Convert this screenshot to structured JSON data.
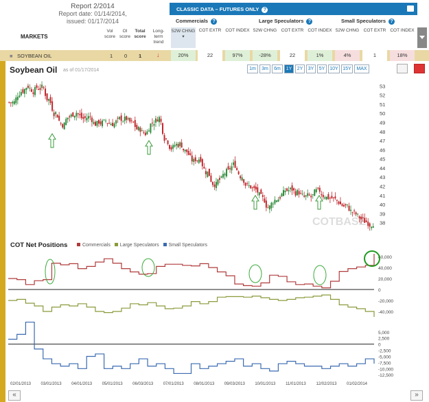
{
  "report": {
    "title": "Report 2/2014",
    "date": "Report date: 01/14/2014,",
    "issued": "issued: 01/17/2014"
  },
  "markets_label": "MARKETS",
  "columns": {
    "vol": "Vol score",
    "oi": "OI score",
    "total": "Total score",
    "lt": "Long-term trend"
  },
  "banner": {
    "label": "CLASSIC DATA – FUTURES ONLY",
    "help": "?"
  },
  "groups": [
    "Commercials",
    "Large Speculators",
    "Small Speculators"
  ],
  "subcols": [
    "52W CHNG",
    "COT EXTR",
    "COT INDEX"
  ],
  "row": {
    "market": "SOYBEAN OIL",
    "vol": "1",
    "oi": "0",
    "total": "1",
    "comm": [
      "20%",
      "22",
      "97%"
    ],
    "large": [
      "-28%",
      "22",
      "1%"
    ],
    "small": [
      "4%",
      "1",
      "18%"
    ]
  },
  "chart_title": "Soybean Oil",
  "as_of": "as of 01/17/2014",
  "ranges": [
    "1m",
    "3m",
    "6m",
    "1Y",
    "2Y",
    "3Y",
    "5Y",
    "10Y",
    "15Y",
    "MAX"
  ],
  "active_range": "1Y",
  "cot_title": "COT Net Positions",
  "legend": [
    {
      "name": "Commercials",
      "color": "#b03a3a"
    },
    {
      "name": "Large Speculators",
      "color": "#8a9a3a"
    },
    {
      "name": "Small Speculators",
      "color": "#3a6ab0"
    }
  ],
  "watermark": "COTBASE",
  "chart_data": [
    {
      "type": "candlestick",
      "title": "Soybean Oil",
      "ylim": [
        37,
        54
      ],
      "yticks": [
        "53",
        "52",
        "51",
        "50",
        "49",
        "48",
        "47",
        "46",
        "45",
        "44",
        "43",
        "42",
        "41",
        "40",
        "39",
        "38"
      ],
      "close": [
        51.2,
        52.4,
        53.0,
        52.5,
        52.8,
        51.5,
        50.0,
        48.8,
        49.6,
        50.1,
        49.4,
        49.6,
        48.8,
        49.0,
        48.9,
        49.1,
        49.3,
        48.9,
        48.2,
        47.8,
        49.0,
        49.5,
        47.2,
        46.2,
        46.6,
        45.8,
        44.7,
        45.1,
        43.5,
        42.3,
        42.7,
        43.6,
        44.4,
        43.1,
        42.0,
        41.6,
        40.6,
        39.7,
        40.6,
        41.2,
        41.6,
        41.3,
        40.8,
        40.8,
        41.4,
        41.0,
        40.7,
        40.3,
        39.8,
        39.2,
        38.6,
        38.1,
        38.0
      ]
    },
    {
      "type": "line",
      "title": "COT Net Positions",
      "series": [
        {
          "name": "Commercials",
          "values": [
            20000,
            18000,
            9000,
            16000,
            18000,
            48000,
            45000,
            47000,
            38000,
            42000,
            50000,
            56000,
            48000,
            38000,
            32000,
            28000,
            29000,
            42000,
            46000,
            46000,
            44000,
            43000,
            47000,
            40000,
            32000,
            25000,
            10000,
            7000,
            6000,
            12000,
            26000,
            24000,
            14000,
            9000,
            10000,
            6000,
            3000,
            15000,
            33000,
            38000,
            41000,
            44000,
            65000
          ]
        },
        {
          "name": "Large Speculators",
          "values": [
            -20000,
            -18000,
            -25000,
            -30000,
            -40000,
            -32000,
            -28000,
            -30000,
            -26000,
            -32000,
            -40000,
            -42000,
            -40000,
            -34000,
            -26000,
            -28000,
            -24000,
            -30000,
            -35000,
            -34000,
            -30000,
            -22000,
            -26000,
            -22000,
            -14000,
            -13000,
            -13000,
            -14000,
            -12000,
            -15000,
            -18000,
            -20000,
            -18000,
            -15000,
            -14000,
            -12000,
            -10000,
            -18000,
            -28000,
            -32000,
            -35000,
            -40000,
            -50000
          ]
        },
        {
          "name": "Small Speculators",
          "values": [
            2000,
            4000,
            9000,
            -2000,
            -6000,
            -8000,
            -9000,
            -8000,
            -10000,
            -5000,
            -4000,
            -10000,
            -9000,
            -10000,
            -8000,
            -6000,
            -9000,
            -8000,
            -10000,
            -12000,
            -12000,
            -8000,
            -10000,
            -9000,
            -8000,
            -7000,
            -6000,
            -9000,
            -8000,
            -10000,
            -11000,
            -8000,
            -7000,
            -8000,
            -9000,
            -9000,
            -10000,
            -9000,
            -8000,
            -9000,
            -8000,
            -6000,
            -8000
          ]
        }
      ],
      "yticks_upper": [
        "60,000",
        "40,000",
        "20,000",
        "0",
        "-20,000",
        "-40,000"
      ],
      "yticks_lower": [
        "5,000",
        "2,500",
        "0",
        "-2,500",
        "-5,000",
        "-7,500",
        "-10,000",
        "-12,500"
      ],
      "xticks": [
        "02/01/2013",
        "03/01/2013",
        "04/01/2013",
        "05/01/2013",
        "06/03/2013",
        "07/01/2013",
        "08/01/2013",
        "09/03/2013",
        "10/01/2013",
        "11/01/2013",
        "12/02/2013",
        "01/02/2014"
      ]
    }
  ]
}
